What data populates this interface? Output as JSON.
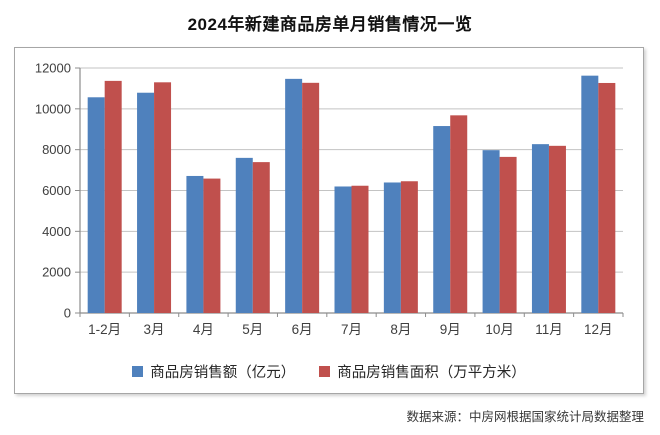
{
  "header": {
    "title": "2024年新建商品房单月销售情况一览"
  },
  "footer": {
    "source": "数据来源：中房网根据国家统计局数据整理"
  },
  "colors": {
    "series_sales": "#4F81BD",
    "series_area": "#C0504D",
    "gridline": "#c3c3c3",
    "axis": "#8c8c8c",
    "tick_label": "#3f3f3f",
    "chart_border": "#a6a6a6"
  },
  "chart_data": {
    "type": "bar",
    "title": "2024年新建商品房单月销售情况一览",
    "categories": [
      "1-2月",
      "3月",
      "4月",
      "5月",
      "6月",
      "7月",
      "8月",
      "9月",
      "10月",
      "11月",
      "12月"
    ],
    "series": [
      {
        "name": "商品房销售额（亿元）",
        "color": "#4F81BD",
        "values": [
          10566,
          10789,
          6712,
          7598,
          11468,
          6197,
          6393,
          9157,
          7975,
          8270,
          11625
        ]
      },
      {
        "name": "商品房销售面积（万平方米）",
        "color": "#C0504D",
        "values": [
          11369,
          11299,
          6584,
          7390,
          11274,
          6233,
          6453,
          9682,
          7646,
          8188,
          11267
        ]
      }
    ],
    "xlabel": "",
    "ylabel": "",
    "ylim": [
      0,
      12000
    ],
    "yticks": [
      0,
      2000,
      4000,
      6000,
      8000,
      10000,
      12000
    ],
    "grid": true,
    "legend_position": "bottom"
  }
}
